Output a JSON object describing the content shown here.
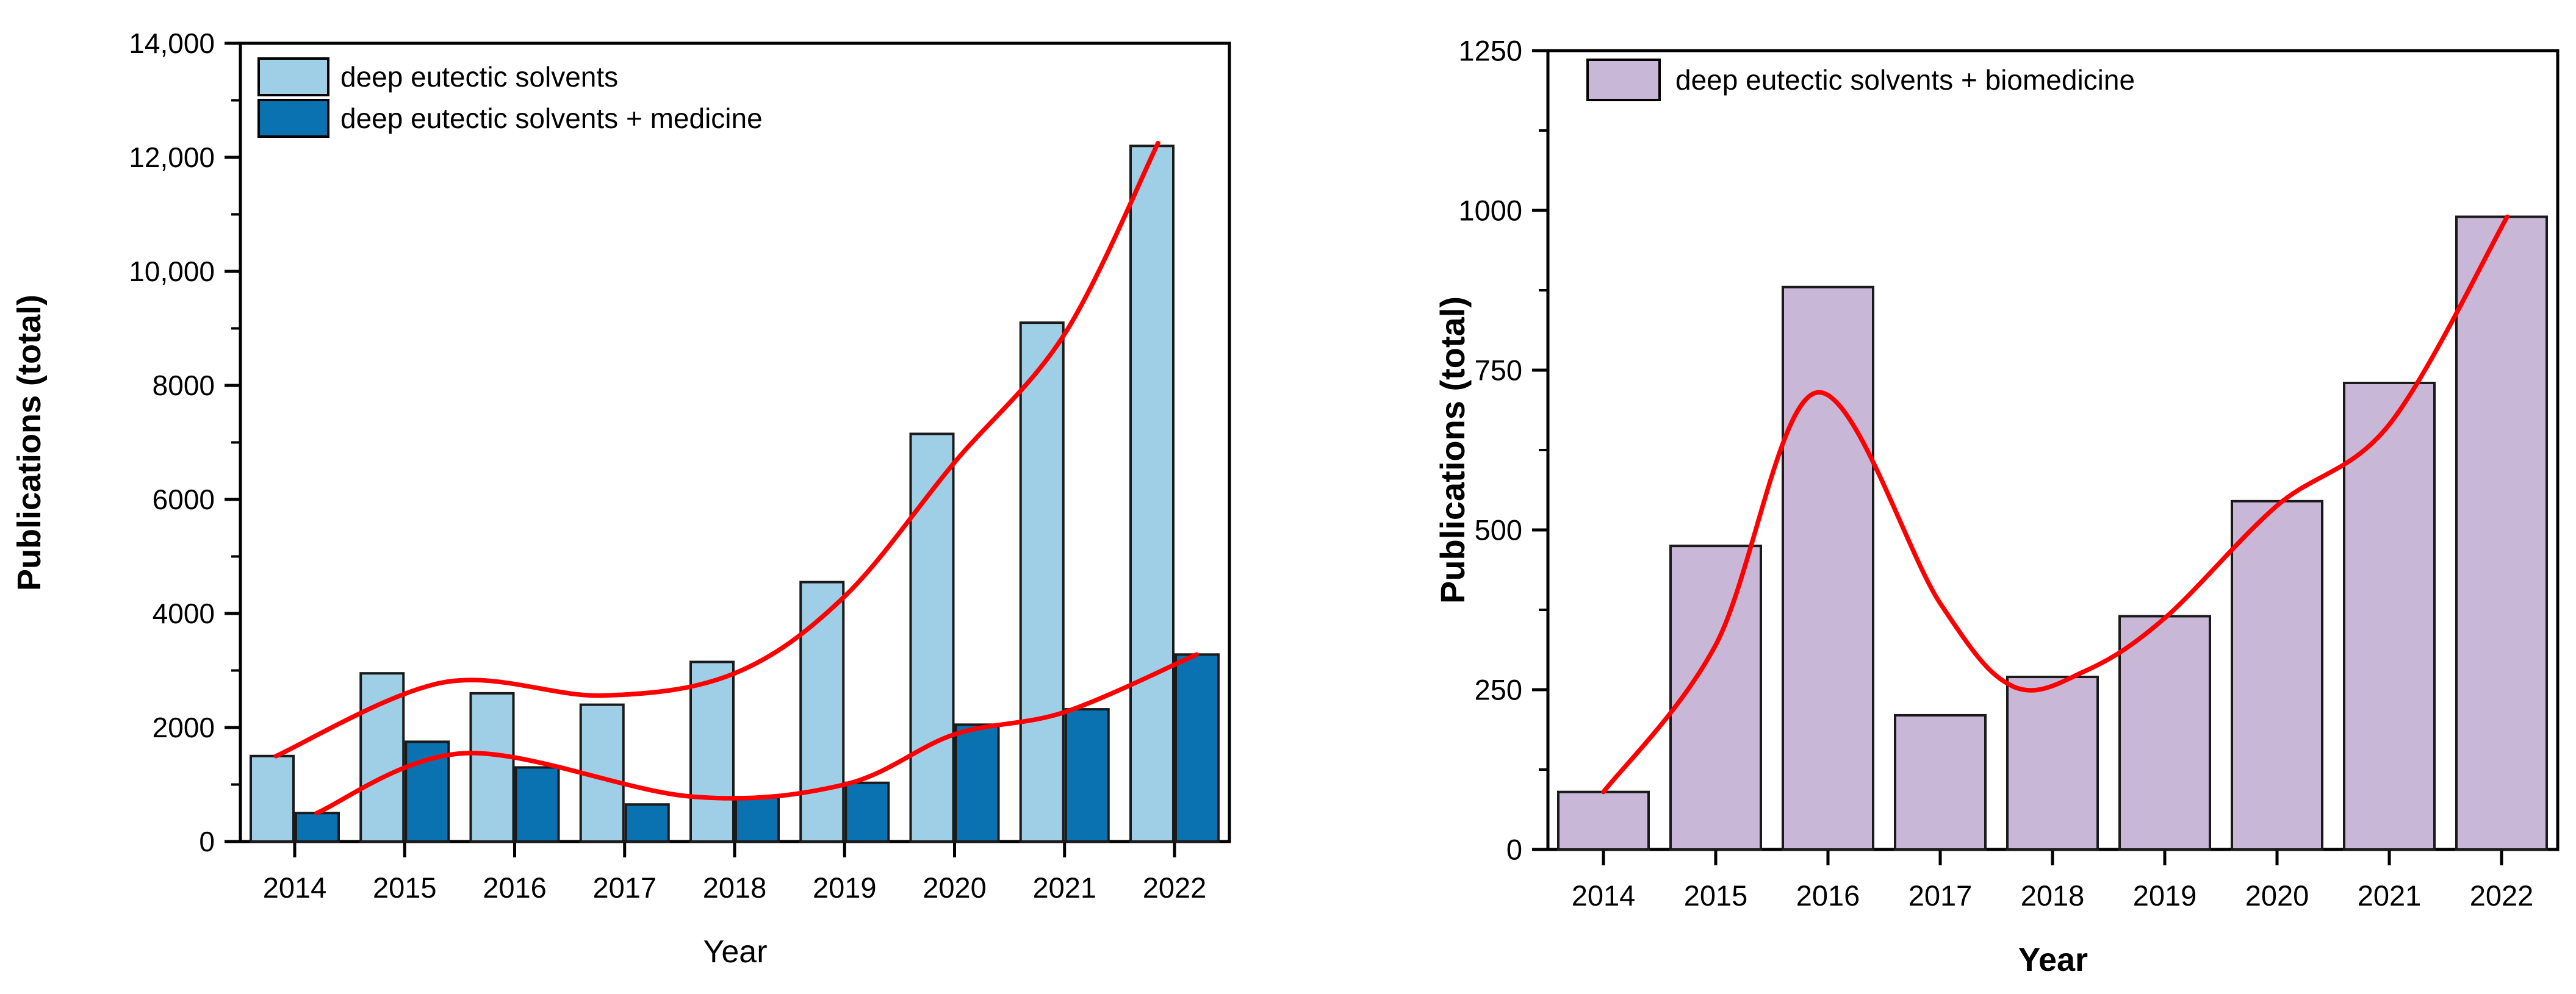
{
  "figure": {
    "background": "#ffffff",
    "description_left_chart": "Publications per year bar chart with trend curves",
    "description_right_chart": "Publications per year bar chart with trend curve"
  },
  "palette": {
    "light_blue": "#9FCFE6",
    "dark_blue": "#0B72B2",
    "purple": "#C9B7D8",
    "trend_red": "#FF0000",
    "axis_black": "#000000",
    "bar_outline": "#1A1A1A"
  },
  "chart_data": [
    {
      "id": "des-medicine",
      "type": "bar",
      "title": "",
      "xlabel": "Year",
      "xlabel_bold": false,
      "ylabel": "Publications (total)",
      "ylabel_bold": true,
      "categories": [
        "2014",
        "2015",
        "2016",
        "2017",
        "2018",
        "2019",
        "2020",
        "2021",
        "2022"
      ],
      "x_years": [
        2014,
        2015,
        2016,
        2017,
        2018,
        2019,
        2020,
        2021,
        2022
      ],
      "ylim": [
        0,
        14000
      ],
      "ytick_step": 2000,
      "yminor_step": 1000,
      "ytick_labels": [
        "0",
        "2000",
        "4000",
        "6000",
        "8000",
        "10,000",
        "12,000",
        "14,000"
      ],
      "grid": false,
      "legend_position": "top-left",
      "series": [
        {
          "name": "deep eutectic solvents",
          "color": "#9FCFE6",
          "values": [
            1500,
            2950,
            2600,
            2400,
            3150,
            4550,
            7150,
            9100,
            12200
          ]
        },
        {
          "name": "deep eutectic solvents + medicine",
          "color": "#0B72B2",
          "values": [
            500,
            1750,
            1300,
            650,
            780,
            1030,
            2050,
            2320,
            3280
          ]
        }
      ],
      "trend_curves": [
        {
          "for": "deep eutectic solvents",
          "color": "#FF0000",
          "points": [
            [
              2013.83,
              1500
            ],
            [
              2015.35,
              2790
            ],
            [
              2016.8,
              2560
            ],
            [
              2018,
              2950
            ],
            [
              2019,
              4300
            ],
            [
              2020,
              6650
            ],
            [
              2021,
              8900
            ],
            [
              2021.85,
              12250
            ]
          ]
        },
        {
          "for": "deep eutectic solvents + medicine",
          "color": "#FF0000",
          "points": [
            [
              2014.2,
              500
            ],
            [
              2015.55,
              1550
            ],
            [
              2017.6,
              790
            ],
            [
              2019,
              1000
            ],
            [
              2020,
              1880
            ],
            [
              2021,
              2270
            ],
            [
              2022.2,
              3280
            ]
          ]
        }
      ]
    },
    {
      "id": "des-biomedicine",
      "type": "bar",
      "title": "",
      "xlabel": "Year",
      "xlabel_bold": true,
      "ylabel": "Publications (total)",
      "ylabel_bold": true,
      "categories": [
        "2014",
        "2015",
        "2016",
        "2017",
        "2018",
        "2019",
        "2020",
        "2021",
        "2022"
      ],
      "x_years": [
        2014,
        2015,
        2016,
        2017,
        2018,
        2019,
        2020,
        2021,
        2022
      ],
      "ylim": [
        0,
        1250
      ],
      "ytick_step": 250,
      "yminor_step": 125,
      "ytick_labels": [
        "0",
        "250",
        "500",
        "750",
        "1000",
        "1250"
      ],
      "grid": false,
      "legend_position": "top-left",
      "series": [
        {
          "name": "deep eutectic solvents + biomedicine",
          "color": "#C9B7D8",
          "values": [
            90,
            475,
            880,
            210,
            270,
            365,
            545,
            730,
            990
          ]
        }
      ],
      "trend_curves": [
        {
          "for": "deep eutectic solvents + biomedicine",
          "color": "#FF0000",
          "points": [
            [
              2014,
              90
            ],
            [
              2015,
              320
            ],
            [
              2015.9,
              715
            ],
            [
              2017,
              385
            ],
            [
              2017.65,
              255
            ],
            [
              2018.3,
              280
            ],
            [
              2019,
              362
            ],
            [
              2020,
              538
            ],
            [
              2021,
              665
            ],
            [
              2022.05,
              990
            ]
          ]
        }
      ]
    }
  ]
}
